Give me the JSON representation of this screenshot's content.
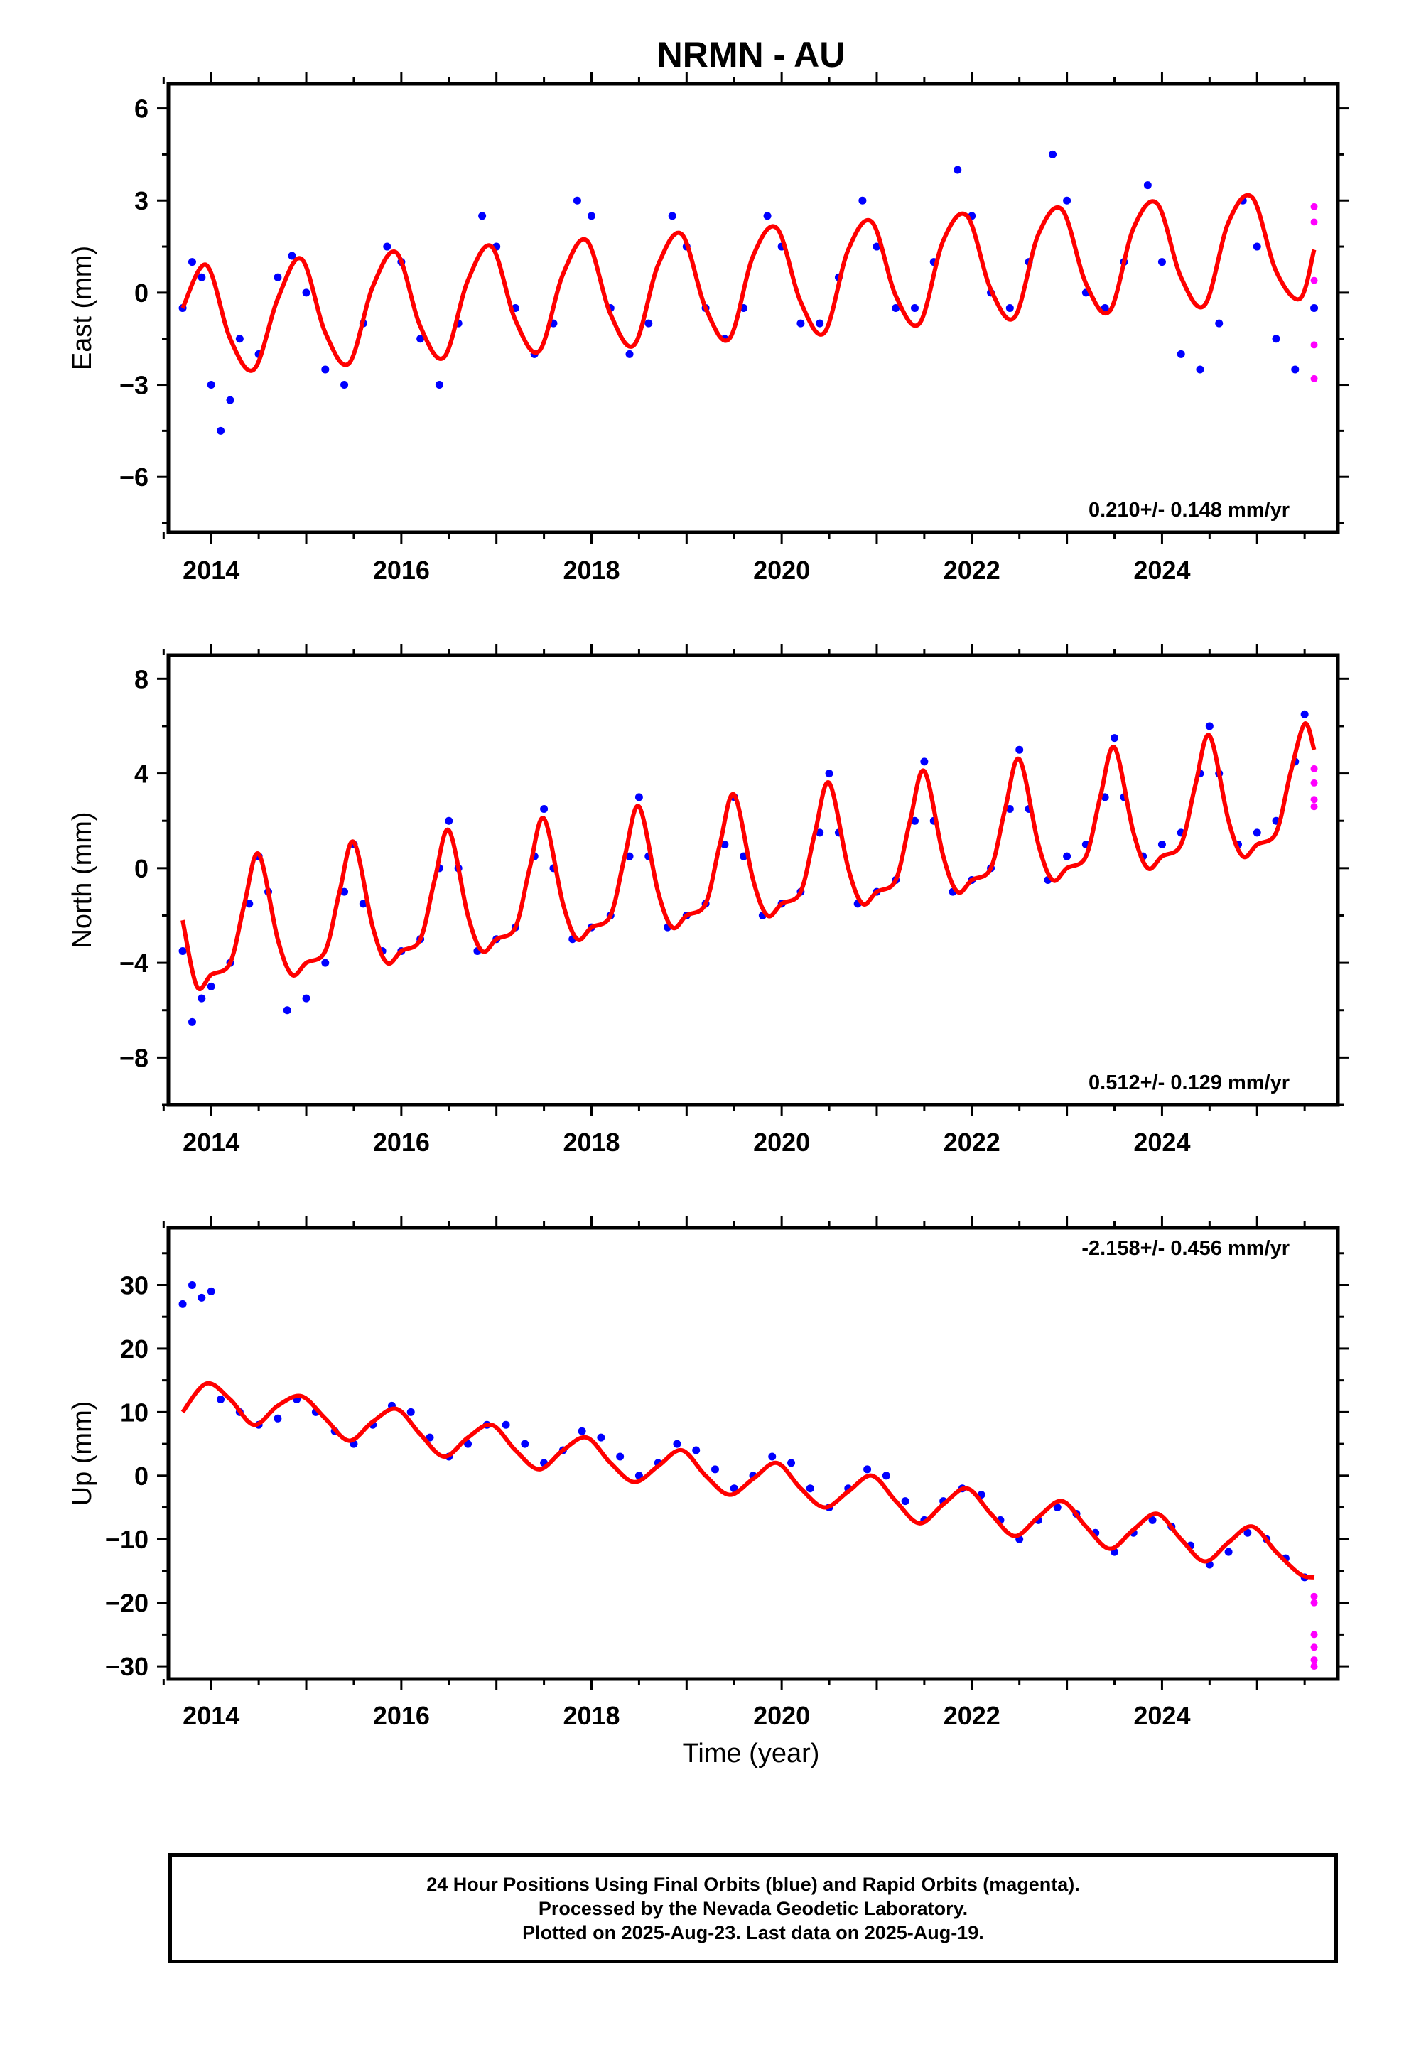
{
  "title": "NRMN - AU",
  "xlabel": "Time (year)",
  "caption": {
    "line1": "24 Hour Positions Using Final Orbits (blue) and Rapid Orbits (magenta).",
    "line2": "Processed by the Nevada Geodetic Laboratory.",
    "line3": "Plotted on 2025-Aug-23. Last data on 2025-Aug-19."
  },
  "colors": {
    "final_orbits": "#0000ff",
    "rapid_orbits": "#ff00ff",
    "model_fit": "#ff0000"
  },
  "chart_data": [
    {
      "type": "scatter",
      "ylabel": "East (mm)",
      "rate": "0.210+/- 0.148 mm/yr",
      "xlim": [
        2013.55,
        2025.85
      ],
      "ylim": [
        -7.8,
        6.8
      ],
      "xticks": [
        2014,
        2016,
        2018,
        2020,
        2022,
        2024
      ],
      "yticks": [
        -6,
        -3,
        0,
        3,
        6
      ],
      "series": [
        {
          "kind": "final",
          "x": [
            2013.7,
            2013.8,
            2013.9,
            2014.0,
            2014.1,
            2014.2,
            2014.3,
            2014.5,
            2014.7,
            2014.85,
            2015.0,
            2015.2,
            2015.4,
            2015.6,
            2015.85,
            2016.0,
            2016.2,
            2016.4,
            2016.6,
            2016.85,
            2017.0,
            2017.2,
            2017.4,
            2017.6,
            2017.85,
            2018.0,
            2018.2,
            2018.4,
            2018.6,
            2018.85,
            2019.0,
            2019.2,
            2019.4,
            2019.6,
            2019.85,
            2020.0,
            2020.2,
            2020.4,
            2020.6,
            2020.85,
            2021.0,
            2021.2,
            2021.4,
            2021.6,
            2021.85,
            2022.0,
            2022.2,
            2022.4,
            2022.6,
            2022.85,
            2023.0,
            2023.2,
            2023.4,
            2023.6,
            2023.85,
            2024.0,
            2024.2,
            2024.4,
            2024.6,
            2024.85,
            2025.0,
            2025.2,
            2025.4,
            2025.6
          ],
          "y": [
            -0.5,
            1.0,
            0.5,
            -3.0,
            -4.5,
            -3.5,
            -1.5,
            -2.0,
            0.5,
            1.2,
            0.0,
            -2.5,
            -3.0,
            -1.0,
            1.5,
            1.0,
            -1.5,
            -3.0,
            -1.0,
            2.5,
            1.5,
            -0.5,
            -2.0,
            -1.0,
            3.0,
            2.5,
            -0.5,
            -2.0,
            -1.0,
            2.5,
            1.5,
            -0.5,
            -1.5,
            -0.5,
            2.5,
            1.5,
            -1.0,
            -1.0,
            0.5,
            3.0,
            1.5,
            -0.5,
            -0.5,
            1.0,
            4.0,
            2.5,
            0.0,
            -0.5,
            1.0,
            4.5,
            3.0,
            0.0,
            -0.5,
            1.0,
            3.5,
            1.0,
            -2.0,
            -2.5,
            -1.0,
            3.0,
            1.5,
            -1.5,
            -2.5,
            -0.5
          ]
        },
        {
          "kind": "rapid",
          "x": [
            2025.6,
            2025.6,
            2025.6,
            2025.6,
            2025.6
          ],
          "y": [
            2.8,
            2.3,
            0.4,
            -1.7,
            -2.8
          ]
        },
        {
          "kind": "model",
          "x": [
            2013.7,
            2013.95,
            2014.2,
            2014.45,
            2014.7,
            2014.95,
            2015.2,
            2015.45,
            2015.7,
            2015.95,
            2016.2,
            2016.45,
            2016.7,
            2016.95,
            2017.2,
            2017.45,
            2017.7,
            2017.95,
            2018.2,
            2018.45,
            2018.7,
            2018.95,
            2019.2,
            2019.45,
            2019.7,
            2019.95,
            2020.2,
            2020.45,
            2020.7,
            2020.95,
            2021.2,
            2021.45,
            2021.7,
            2021.95,
            2022.2,
            2022.45,
            2022.7,
            2022.95,
            2023.2,
            2023.45,
            2023.7,
            2023.95,
            2024.2,
            2024.45,
            2024.7,
            2024.95,
            2025.2,
            2025.45,
            2025.6
          ],
          "y": [
            -0.5,
            0.9,
            -1.5,
            -2.5,
            -0.2,
            1.1,
            -1.3,
            -2.3,
            0.2,
            1.3,
            -1.1,
            -2.1,
            0.4,
            1.5,
            -0.9,
            -1.9,
            0.6,
            1.7,
            -0.7,
            -1.7,
            0.9,
            1.9,
            -0.5,
            -1.5,
            1.2,
            2.1,
            -0.3,
            -1.3,
            1.4,
            2.3,
            -0.1,
            -1.0,
            1.7,
            2.5,
            0.1,
            -0.8,
            1.9,
            2.7,
            0.3,
            -0.6,
            2.1,
            2.9,
            0.5,
            -0.4,
            2.3,
            3.1,
            0.7,
            -0.2,
            1.4
          ]
        }
      ]
    },
    {
      "type": "scatter",
      "ylabel": "North (mm)",
      "rate": "0.512+/- 0.129 mm/yr",
      "xlim": [
        2013.55,
        2025.85
      ],
      "ylim": [
        -10,
        9
      ],
      "xticks": [
        2014,
        2016,
        2018,
        2020,
        2022,
        2024
      ],
      "yticks": [
        -8,
        -4,
        0,
        4,
        8
      ],
      "series": [
        {
          "kind": "final",
          "x": [
            2013.7,
            2013.8,
            2013.9,
            2014.0,
            2014.2,
            2014.4,
            2014.5,
            2014.6,
            2014.8,
            2015.0,
            2015.2,
            2015.4,
            2015.5,
            2015.6,
            2015.8,
            2016.0,
            2016.2,
            2016.4,
            2016.5,
            2016.6,
            2016.8,
            2017.0,
            2017.2,
            2017.4,
            2017.5,
            2017.6,
            2017.8,
            2018.0,
            2018.2,
            2018.4,
            2018.5,
            2018.6,
            2018.8,
            2019.0,
            2019.2,
            2019.4,
            2019.5,
            2019.6,
            2019.8,
            2020.0,
            2020.2,
            2020.4,
            2020.5,
            2020.6,
            2020.8,
            2021.0,
            2021.2,
            2021.4,
            2021.5,
            2021.6,
            2021.8,
            2022.0,
            2022.2,
            2022.4,
            2022.5,
            2022.6,
            2022.8,
            2023.0,
            2023.2,
            2023.4,
            2023.5,
            2023.6,
            2023.8,
            2024.0,
            2024.2,
            2024.4,
            2024.5,
            2024.6,
            2024.8,
            2025.0,
            2025.2,
            2025.4,
            2025.5
          ],
          "y": [
            -3.5,
            -6.5,
            -5.5,
            -5.0,
            -4.0,
            -1.5,
            0.5,
            -1.0,
            -6.0,
            -5.5,
            -4.0,
            -1.0,
            1.0,
            -1.5,
            -3.5,
            -3.5,
            -3.0,
            0.0,
            2.0,
            0.0,
            -3.5,
            -3.0,
            -2.5,
            0.5,
            2.5,
            0.0,
            -3.0,
            -2.5,
            -2.0,
            0.5,
            3.0,
            0.5,
            -2.5,
            -2.0,
            -1.5,
            1.0,
            3.0,
            0.5,
            -2.0,
            -1.5,
            -1.0,
            1.5,
            4.0,
            1.5,
            -1.5,
            -1.0,
            -0.5,
            2.0,
            4.5,
            2.0,
            -1.0,
            -0.5,
            0.0,
            2.5,
            5.0,
            2.5,
            -0.5,
            0.5,
            1.0,
            3.0,
            5.5,
            3.0,
            0.5,
            1.0,
            1.5,
            4.0,
            6.0,
            4.0,
            1.0,
            1.5,
            2.0,
            4.5,
            6.5
          ]
        },
        {
          "kind": "rapid",
          "x": [
            2025.6,
            2025.6,
            2025.6,
            2025.6
          ],
          "y": [
            4.2,
            3.6,
            2.9,
            2.6
          ]
        },
        {
          "kind": "model",
          "x": [
            2013.7,
            2013.85,
            2014.0,
            2014.2,
            2014.35,
            2014.5,
            2014.7,
            2014.85,
            2015.0,
            2015.2,
            2015.35,
            2015.5,
            2015.7,
            2015.85,
            2016.0,
            2016.2,
            2016.35,
            2016.5,
            2016.7,
            2016.85,
            2017.0,
            2017.2,
            2017.35,
            2017.5,
            2017.7,
            2017.85,
            2018.0,
            2018.2,
            2018.35,
            2018.5,
            2018.7,
            2018.85,
            2019.0,
            2019.2,
            2019.35,
            2019.5,
            2019.7,
            2019.85,
            2020.0,
            2020.2,
            2020.35,
            2020.5,
            2020.7,
            2020.85,
            2021.0,
            2021.2,
            2021.35,
            2021.5,
            2021.7,
            2021.85,
            2022.0,
            2022.2,
            2022.35,
            2022.5,
            2022.7,
            2022.85,
            2023.0,
            2023.2,
            2023.35,
            2023.5,
            2023.7,
            2023.85,
            2024.0,
            2024.2,
            2024.35,
            2024.5,
            2024.7,
            2024.85,
            2025.0,
            2025.2,
            2025.35,
            2025.5,
            2025.6
          ],
          "y": [
            -2.2,
            -5.0,
            -4.5,
            -4.0,
            -1.5,
            0.6,
            -3.0,
            -4.5,
            -4.0,
            -3.5,
            -1.0,
            1.1,
            -2.5,
            -4.0,
            -3.5,
            -3.0,
            -0.5,
            1.6,
            -2.0,
            -3.5,
            -3.0,
            -2.5,
            0.0,
            2.1,
            -1.5,
            -3.0,
            -2.5,
            -2.0,
            0.5,
            2.6,
            -1.0,
            -2.5,
            -2.0,
            -1.5,
            1.0,
            3.1,
            -0.5,
            -2.0,
            -1.5,
            -1.0,
            1.5,
            3.6,
            0.0,
            -1.5,
            -1.0,
            -0.5,
            2.0,
            4.1,
            0.5,
            -1.0,
            -0.5,
            0.0,
            2.5,
            4.6,
            1.0,
            -0.5,
            0.0,
            0.5,
            3.0,
            5.1,
            1.5,
            0.0,
            0.5,
            1.0,
            3.5,
            5.6,
            2.0,
            0.5,
            1.0,
            1.5,
            4.0,
            6.1,
            5.0
          ]
        }
      ]
    },
    {
      "type": "scatter",
      "ylabel": "Up (mm)",
      "rate": "-2.158+/- 0.456 mm/yr",
      "xlim": [
        2013.55,
        2025.85
      ],
      "ylim": [
        -32,
        39
      ],
      "xticks": [
        2014,
        2016,
        2018,
        2020,
        2022,
        2024
      ],
      "yticks": [
        -30,
        -20,
        -10,
        0,
        10,
        20,
        30
      ],
      "series": [
        {
          "kind": "final",
          "x": [
            2013.7,
            2013.8,
            2013.9,
            2014.0,
            2014.1,
            2014.3,
            2014.5,
            2014.7,
            2014.9,
            2015.1,
            2015.3,
            2015.5,
            2015.7,
            2015.9,
            2016.1,
            2016.3,
            2016.5,
            2016.7,
            2016.9,
            2017.1,
            2017.3,
            2017.5,
            2017.7,
            2017.9,
            2018.1,
            2018.3,
            2018.5,
            2018.7,
            2018.9,
            2019.1,
            2019.3,
            2019.5,
            2019.7,
            2019.9,
            2020.1,
            2020.3,
            2020.5,
            2020.7,
            2020.9,
            2021.1,
            2021.3,
            2021.5,
            2021.7,
            2021.9,
            2022.1,
            2022.3,
            2022.5,
            2022.7,
            2022.9,
            2023.1,
            2023.3,
            2023.5,
            2023.7,
            2023.9,
            2024.1,
            2024.3,
            2024.5,
            2024.7,
            2024.9,
            2025.1,
            2025.3,
            2025.5
          ],
          "y": [
            27,
            30,
            28,
            29,
            12,
            10,
            8,
            9,
            12,
            10,
            7,
            5,
            8,
            11,
            10,
            6,
            3,
            5,
            8,
            8,
            5,
            2,
            4,
            7,
            6,
            3,
            0,
            2,
            5,
            4,
            1,
            -2,
            0,
            3,
            2,
            -2,
            -5,
            -2,
            1,
            0,
            -4,
            -7,
            -4,
            -2,
            -3,
            -7,
            -10,
            -7,
            -5,
            -6,
            -9,
            -12,
            -9,
            -7,
            -8,
            -11,
            -14,
            -12,
            -9,
            -10,
            -13,
            -16
          ]
        },
        {
          "kind": "rapid",
          "x": [
            2025.6,
            2025.6,
            2025.6,
            2025.6,
            2025.6,
            2025.6
          ],
          "y": [
            -19,
            -20,
            -25,
            -27,
            -29,
            -30
          ]
        },
        {
          "kind": "model",
          "x": [
            2013.7,
            2013.95,
            2014.2,
            2014.45,
            2014.7,
            2014.95,
            2015.2,
            2015.45,
            2015.7,
            2015.95,
            2016.2,
            2016.45,
            2016.7,
            2016.95,
            2017.2,
            2017.45,
            2017.7,
            2017.95,
            2018.2,
            2018.45,
            2018.7,
            2018.95,
            2019.2,
            2019.45,
            2019.7,
            2019.95,
            2020.2,
            2020.45,
            2020.7,
            2020.95,
            2021.2,
            2021.45,
            2021.7,
            2021.95,
            2022.2,
            2022.45,
            2022.7,
            2022.95,
            2023.2,
            2023.45,
            2023.7,
            2023.95,
            2024.2,
            2024.45,
            2024.7,
            2024.95,
            2025.2,
            2025.45,
            2025.6
          ],
          "y": [
            10,
            14.5,
            12,
            8,
            11,
            12.5,
            9,
            5.5,
            8.5,
            10.5,
            6.5,
            3,
            6,
            8,
            4,
            1,
            4,
            6,
            2,
            -1,
            1.5,
            4,
            0,
            -3,
            -0.5,
            2,
            -2,
            -5,
            -2.5,
            0,
            -4,
            -7.5,
            -4.5,
            -2,
            -6,
            -9.5,
            -6.5,
            -4,
            -8,
            -11.5,
            -8.5,
            -6,
            -10,
            -13.5,
            -10.5,
            -8,
            -12,
            -15.5,
            -16
          ]
        }
      ]
    }
  ]
}
